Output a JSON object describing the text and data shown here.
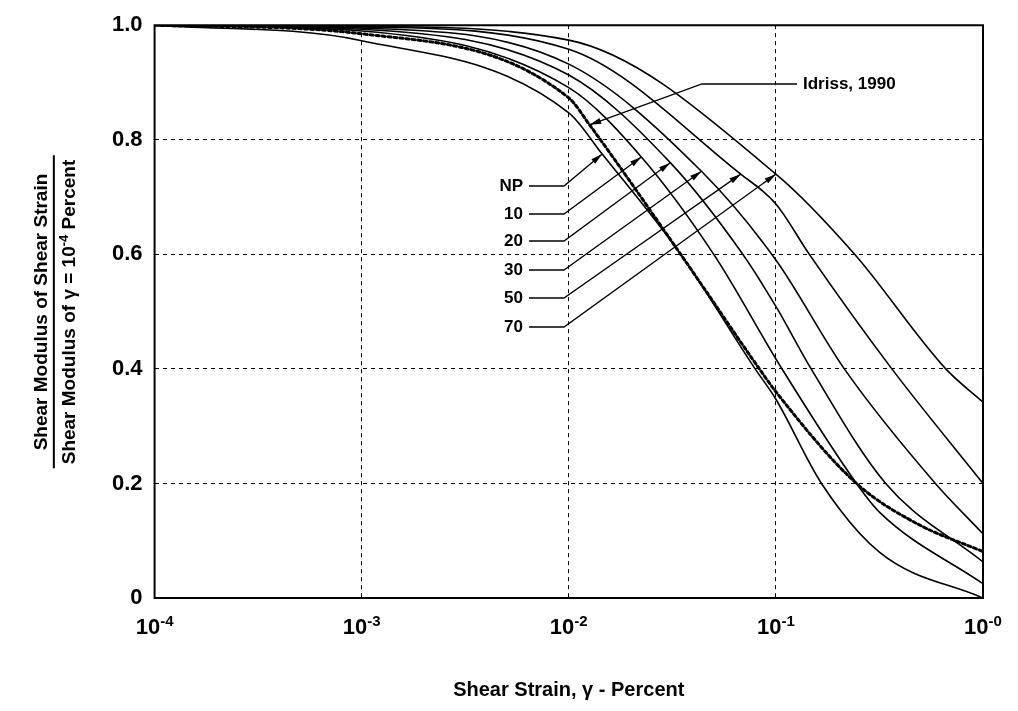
{
  "chart_data": {
    "type": "line",
    "xlabel": "Shear Strain, γ - Percent",
    "ylabel": "Shear Modulus of Shear Strain\nShear Modulus of γ = 10$^{-4}$ Percent",
    "log": "x",
    "grid": true,
    "legend": false,
    "marker": "none",
    "xlim": [
      0.0001,
      1
    ],
    "ylim": [
      0,
      1
    ],
    "xticks": [
      {
        "value": 0.0001,
        "label": "10$^{-4}$"
      },
      {
        "value": 0.001,
        "label": "10$^{-3}$"
      },
      {
        "value": 0.01,
        "label": "10$^{-2}$"
      },
      {
        "value": 0.1,
        "label": "10$^{-1}$"
      },
      {
        "value": 1,
        "label": "10$^{-0}$"
      }
    ],
    "yticks": [
      0,
      {
        "value": 0.2,
        "label": "0.2"
      },
      {
        "value": 0.4,
        "label": "0.4"
      },
      {
        "value": 0.6,
        "label": "0.6"
      },
      {
        "value": 0.8,
        "label": "0.8"
      },
      {
        "value": 1,
        "label": "1.0"
      }
    ],
    "series": [
      {
        "color": "#000000",
        "x": [
          0.0001,
          0.001,
          0.01,
          0.0145,
          0.0347,
          0.0794,
          0.1,
          0.166,
          0.316,
          1
        ],
        "values": [
          1,
          0.973,
          0.847,
          0.775,
          0.6,
          0.4,
          0.347,
          0.2,
          0.08,
          0
        ]
      },
      {
        "color": "#000000",
        "x": [
          0.0001,
          0.001,
          0.01,
          0.0224,
          0.0501,
          0.107,
          0.245,
          0.316,
          1
        ],
        "values": [
          1,
          0.99,
          0.891,
          0.77,
          0.6,
          0.4,
          0.2,
          0.15,
          0.025
        ]
      },
      {
        "color": "#000000",
        "x": [
          0.0001,
          0.001,
          0.01,
          0.0309,
          0.0692,
          0.1,
          0.148,
          0.339,
          1
        ],
        "values": [
          1,
          0.993,
          0.913,
          0.76,
          0.6,
          0.509,
          0.4,
          0.2,
          0.063
        ]
      },
      {
        "color": "#000000",
        "x": [
          0.0001,
          0.001,
          0.01,
          0.0437,
          0.1,
          0.214,
          0.589,
          1
        ],
        "values": [
          1,
          0.995,
          0.932,
          0.745,
          0.59,
          0.4,
          0.2,
          0.112
        ]
      },
      {
        "color": "#000000",
        "x": [
          0.0001,
          0.001,
          0.01,
          0.0676,
          0.1,
          0.145,
          0.363,
          1
        ],
        "values": [
          1,
          0.997,
          0.958,
          0.74,
          0.688,
          0.6,
          0.4,
          0.2
        ]
      },
      {
        "color": "#000000",
        "x": [
          0.0001,
          0.001,
          0.01,
          0.1,
          0.24,
          0.661,
          1
        ],
        "values": [
          1,
          0.998,
          0.974,
          0.74,
          0.6,
          0.4,
          0.342
        ]
      },
      {
        "color": "#000000",
        "line_style": "dotted",
        "x": [
          0.0001,
          0.001,
          0.01,
          0.0126,
          0.0347,
          0.0832,
          0.1,
          0.245,
          0.479,
          1
        ],
        "values": [
          1,
          0.985,
          0.873,
          0.826,
          0.6,
          0.4,
          0.36,
          0.2,
          0.13,
          0.081
        ]
      }
    ],
    "annotations": [
      {
        "text": "NP",
        "x": 0.0145,
        "y": 0.775
      },
      {
        "text": "10",
        "x": 0.0224,
        "y": 0.77
      },
      {
        "text": "20",
        "x": 0.0309,
        "y": 0.76
      },
      {
        "text": "30",
        "x": 0.0437,
        "y": 0.745
      },
      {
        "text": "50",
        "x": 0.0676,
        "y": 0.74
      },
      {
        "text": "70",
        "x": 0.1,
        "y": 0.74
      },
      {
        "text": "Idriss, 1990",
        "x": 0.0126,
        "y": 0.826
      }
    ]
  }
}
